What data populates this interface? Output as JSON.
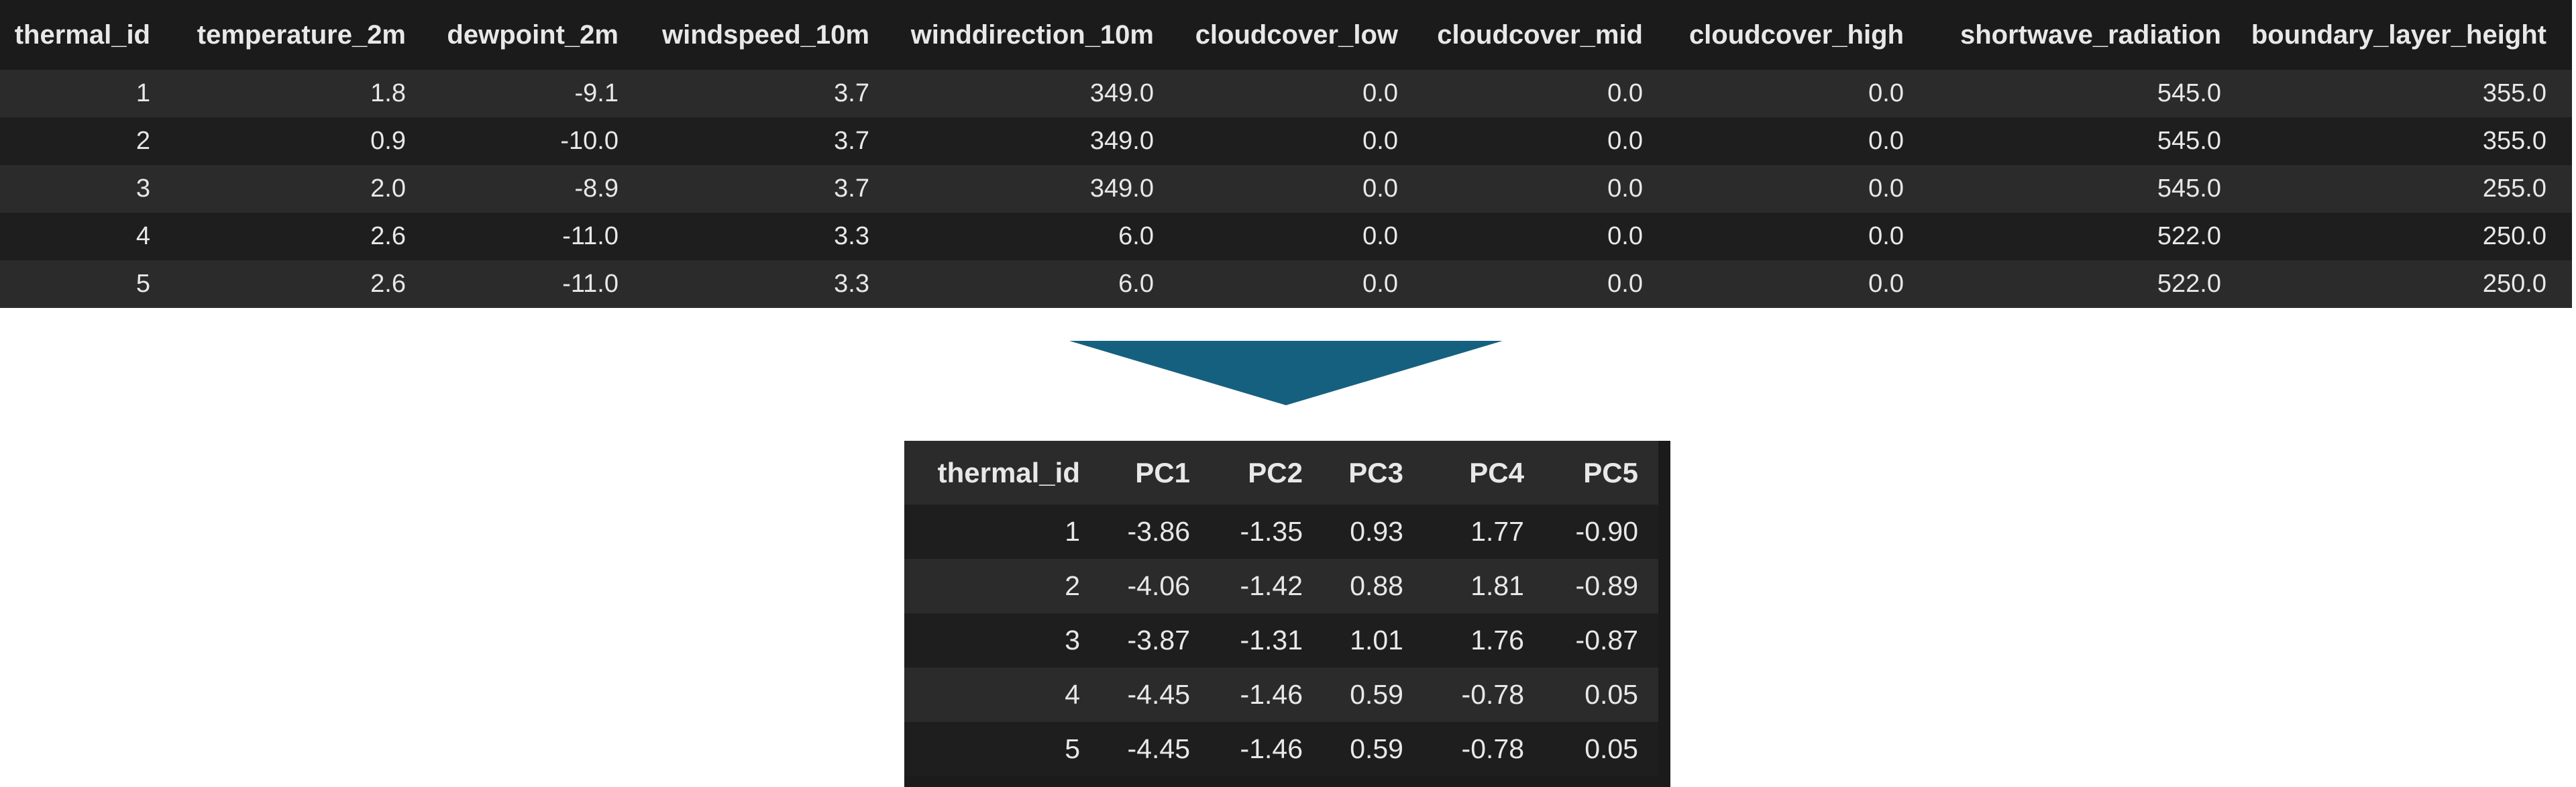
{
  "top_table": {
    "columns": [
      "thermal_id",
      "temperature_2m",
      "dewpoint_2m",
      "windspeed_10m",
      "winddirection_10m",
      "cloudcover_low",
      "cloudcover_mid",
      "cloudcover_high",
      "shortwave_radiation",
      "boundary_layer_height"
    ],
    "rows": [
      [
        "1",
        "1.8",
        "-9.1",
        "3.7",
        "349.0",
        "0.0",
        "0.0",
        "0.0",
        "545.0",
        "355.0"
      ],
      [
        "2",
        "0.9",
        "-10.0",
        "3.7",
        "349.0",
        "0.0",
        "0.0",
        "0.0",
        "545.0",
        "355.0"
      ],
      [
        "3",
        "2.0",
        "-8.9",
        "3.7",
        "349.0",
        "0.0",
        "0.0",
        "0.0",
        "545.0",
        "255.0"
      ],
      [
        "4",
        "2.6",
        "-11.0",
        "3.3",
        "6.0",
        "0.0",
        "0.0",
        "0.0",
        "522.0",
        "250.0"
      ],
      [
        "5",
        "2.6",
        "-11.0",
        "3.3",
        "6.0",
        "0.0",
        "0.0",
        "0.0",
        "522.0",
        "250.0"
      ]
    ]
  },
  "arrow": {
    "icon": "down-arrow-icon",
    "color": "#15607f"
  },
  "bottom_table": {
    "columns": [
      "thermal_id",
      "PC1",
      "PC2",
      "PC3",
      "PC4",
      "PC5"
    ],
    "rows": [
      [
        "1",
        "-3.86",
        "-1.35",
        "0.93",
        "1.77",
        "-0.90"
      ],
      [
        "2",
        "-4.06",
        "-1.42",
        "0.88",
        "1.81",
        "-0.89"
      ],
      [
        "3",
        "-3.87",
        "-1.31",
        "1.01",
        "1.76",
        "-0.87"
      ],
      [
        "4",
        "-4.45",
        "-1.46",
        "0.59",
        "-0.78",
        "0.05"
      ],
      [
        "5",
        "-4.45",
        "-1.46",
        "0.59",
        "-0.78",
        "0.05"
      ]
    ]
  },
  "colors": {
    "table_background": "#1b1b1b",
    "row_stripe": "#2b2b2b",
    "text": "#e8e8e8"
  }
}
